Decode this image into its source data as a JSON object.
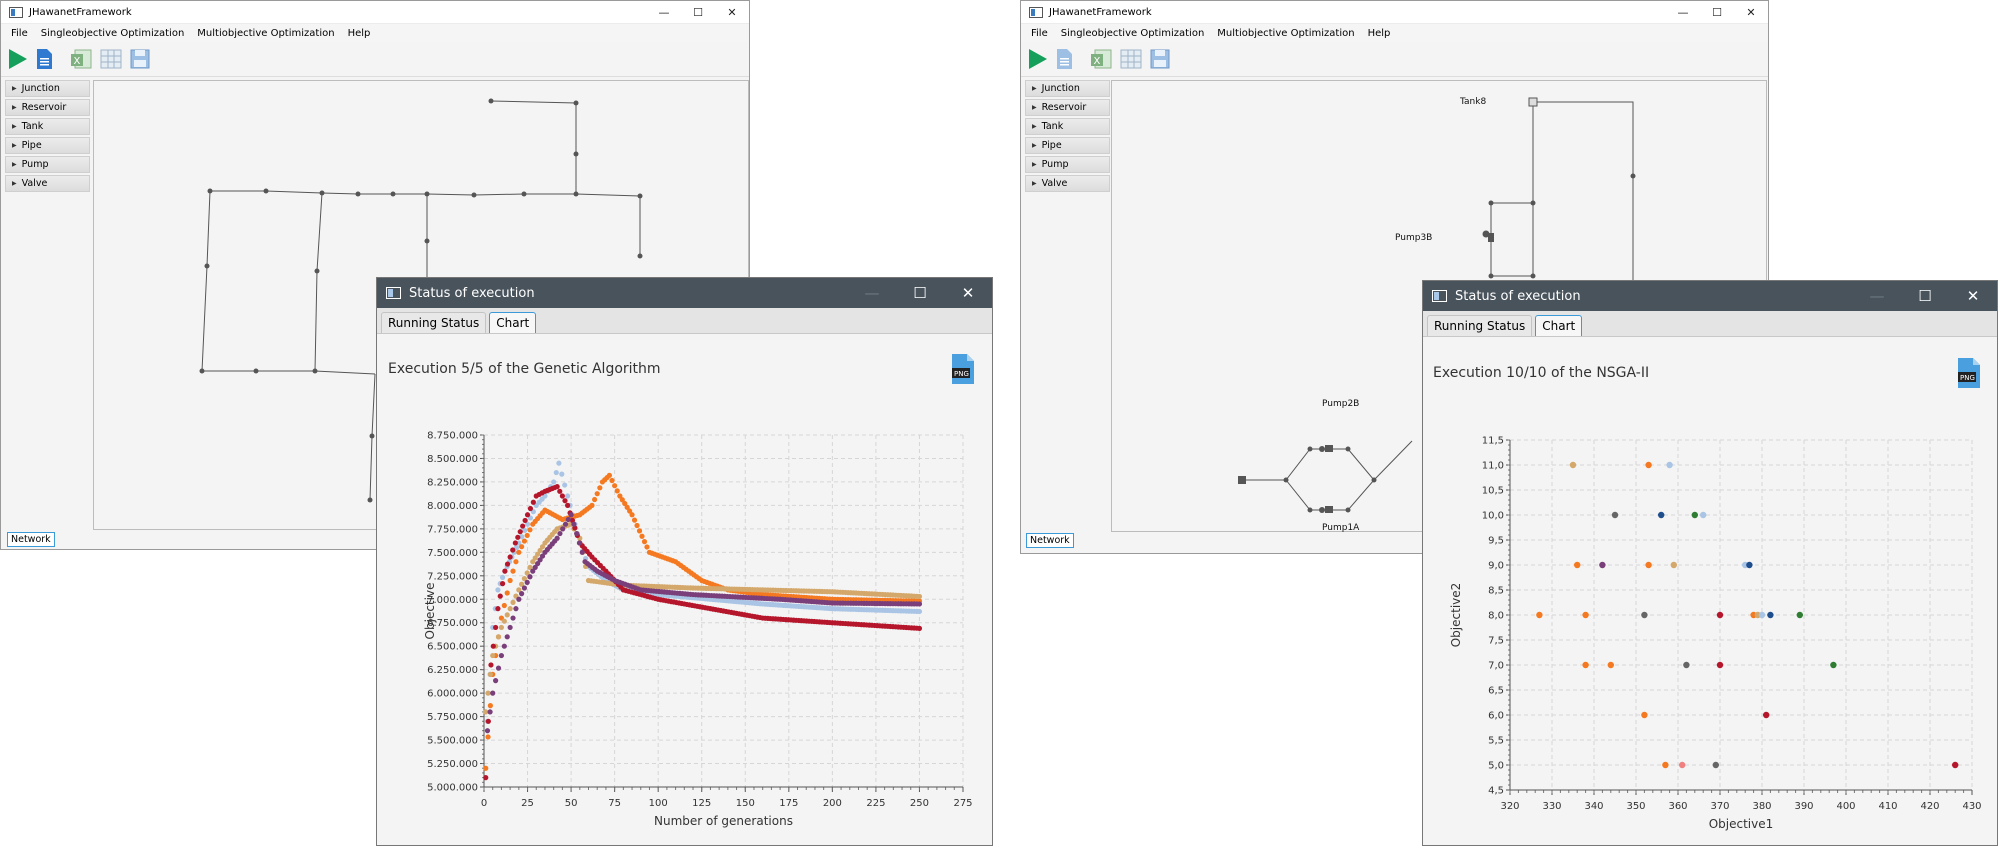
{
  "window_left": {
    "title": "JHawanetFramework",
    "menu": [
      "File",
      "Singleobjective Optimization",
      "Multiobjective Optimization",
      "Help"
    ],
    "sidebar": [
      "Junction",
      "Reservoir",
      "Tank",
      "Pipe",
      "Pump",
      "Valve"
    ],
    "bottom_tab": "Network"
  },
  "window_right": {
    "title": "JHawanetFramework",
    "menu": [
      "File",
      "Singleobjective Optimization",
      "Multiobjective Optimization",
      "Help"
    ],
    "sidebar": [
      "Junction",
      "Reservoir",
      "Tank",
      "Pipe",
      "Pump",
      "Valve"
    ],
    "bottom_tab": "Network",
    "labels": {
      "tank": "Tank8",
      "pump3": "Pump3B",
      "pump2": "Pump2B",
      "pump1": "Pump1A"
    }
  },
  "dialog_left": {
    "title": "Status of execution",
    "tabs": [
      "Running Status",
      "Chart"
    ],
    "active_tab": "Chart",
    "heading": "Execution 5/5 of the Genetic Algorithm",
    "icon": "png-export-icon"
  },
  "dialog_right": {
    "title": "Status of execution",
    "tabs": [
      "Running Status",
      "Chart"
    ],
    "active_tab": "Chart",
    "heading": "Execution 10/10 of the NSGA-II",
    "icon": "png-export-icon"
  },
  "chart_data": [
    {
      "type": "scatter",
      "xlabel": "Number of generations",
      "ylabel": "Objective",
      "xlim": [
        0,
        275
      ],
      "ylim": [
        5000000,
        8750000
      ],
      "x_ticks": [
        "0",
        "25",
        "50",
        "75",
        "100",
        "125",
        "150",
        "175",
        "200",
        "225",
        "250",
        "275"
      ],
      "y_ticks": [
        "5.000.000",
        "5.250.000",
        "5.500.000",
        "5.750.000",
        "6.000.000",
        "6.250.000",
        "6.500.000",
        "6.750.000",
        "7.000.000",
        "7.250.000",
        "7.500.000",
        "7.750.000",
        "8.000.000",
        "8.250.000",
        "8.500.000",
        "8.750.000"
      ],
      "grid": true,
      "series": [
        {
          "color": "#a9c4e4",
          "points": [
            [
              2,
              5700000
            ],
            [
              5,
              6700000
            ],
            [
              8,
              7100000
            ],
            [
              12,
              7300000
            ],
            [
              16,
              7450000
            ],
            [
              20,
              7600000
            ],
            [
              25,
              7800000
            ],
            [
              30,
              8000000
            ],
            [
              35,
              8100000
            ],
            [
              40,
              8250000
            ],
            [
              43,
              8450000
            ],
            [
              48,
              8100000
            ],
            [
              55,
              7600000
            ],
            [
              60,
              7350000
            ],
            [
              70,
              7200000
            ],
            [
              80,
              7100000
            ],
            [
              100,
              7050000
            ],
            [
              130,
              7000000
            ],
            [
              160,
              6950000
            ],
            [
              200,
              6900000
            ],
            [
              250,
              6870000
            ]
          ]
        },
        {
          "color": "#f47920",
          "points": [
            [
              1,
              5200000
            ],
            [
              5,
              6200000
            ],
            [
              10,
              6800000
            ],
            [
              15,
              7200000
            ],
            [
              20,
              7500000
            ],
            [
              28,
              7800000
            ],
            [
              35,
              7950000
            ],
            [
              45,
              7850000
            ],
            [
              55,
              7900000
            ],
            [
              62,
              8000000
            ],
            [
              68,
              8250000
            ],
            [
              72,
              8320000
            ],
            [
              78,
              8100000
            ],
            [
              85,
              7900000
            ],
            [
              95,
              7500000
            ],
            [
              110,
              7400000
            ],
            [
              125,
              7200000
            ],
            [
              140,
              7100000
            ],
            [
              160,
              7050000
            ],
            [
              200,
              7000000
            ],
            [
              250,
              6980000
            ]
          ]
        },
        {
          "color": "#d4a76a",
          "points": [
            [
              1,
              5800000
            ],
            [
              5,
              6400000
            ],
            [
              10,
              6700000
            ],
            [
              15,
              6900000
            ],
            [
              20,
              7100000
            ],
            [
              28,
              7400000
            ],
            [
              35,
              7600000
            ],
            [
              42,
              7750000
            ],
            [
              50,
              7800000
            ],
            [
              55,
              7650000
            ],
            [
              60,
              7200000
            ],
            [
              80,
              7150000
            ],
            [
              120,
              7120000
            ],
            [
              160,
              7100000
            ],
            [
              200,
              7080000
            ],
            [
              250,
              7030000
            ]
          ]
        },
        {
          "color": "#b5162b",
          "points": [
            [
              1,
              5100000
            ],
            [
              4,
              6300000
            ],
            [
              8,
              6900000
            ],
            [
              12,
              7300000
            ],
            [
              18,
              7600000
            ],
            [
              25,
              7900000
            ],
            [
              30,
              8100000
            ],
            [
              35,
              8150000
            ],
            [
              42,
              8200000
            ],
            [
              48,
              8000000
            ],
            [
              55,
              7600000
            ],
            [
              62,
              7450000
            ],
            [
              70,
              7300000
            ],
            [
              80,
              7100000
            ],
            [
              100,
              7000000
            ],
            [
              130,
              6900000
            ],
            [
              160,
              6800000
            ],
            [
              200,
              6750000
            ],
            [
              250,
              6690000
            ]
          ]
        },
        {
          "color": "#7a3f7a",
          "points": [
            [
              2,
              5600000
            ],
            [
              5,
              6000000
            ],
            [
              10,
              6400000
            ],
            [
              15,
              6700000
            ],
            [
              20,
              7000000
            ],
            [
              28,
              7300000
            ],
            [
              35,
              7500000
            ],
            [
              42,
              7650000
            ],
            [
              50,
              7900000
            ],
            [
              58,
              7400000
            ],
            [
              65,
              7300000
            ],
            [
              75,
              7200000
            ],
            [
              90,
              7100000
            ],
            [
              120,
              7050000
            ],
            [
              170,
              7000000
            ],
            [
              200,
              6960000
            ],
            [
              250,
              6950000
            ]
          ]
        }
      ]
    },
    {
      "type": "scatter",
      "xlabel": "Objective1",
      "ylabel": "Objective2",
      "xlim": [
        320,
        430
      ],
      "ylim": [
        4.5,
        11.5
      ],
      "x_ticks": [
        "320",
        "330",
        "340",
        "350",
        "360",
        "370",
        "380",
        "390",
        "400",
        "410",
        "420",
        "430"
      ],
      "y_ticks": [
        "4,5",
        "5,0",
        "5,5",
        "6,0",
        "6,5",
        "7,0",
        "7,5",
        "8,0",
        "8,5",
        "9,0",
        "9,5",
        "10,0",
        "10,5",
        "11,0",
        "11,5"
      ],
      "grid": true,
      "points": [
        {
          "x": 335,
          "y": 11.0,
          "color": "#d4a76a"
        },
        {
          "x": 353,
          "y": 11.0,
          "color": "#f47920"
        },
        {
          "x": 358,
          "y": 11.0,
          "color": "#a9c4e4"
        },
        {
          "x": 345,
          "y": 10.0,
          "color": "#666666"
        },
        {
          "x": 356,
          "y": 10.0,
          "color": "#1f4e8c"
        },
        {
          "x": 364,
          "y": 10.0,
          "color": "#2e7d32"
        },
        {
          "x": 366,
          "y": 10.0,
          "color": "#a9c4e4"
        },
        {
          "x": 336,
          "y": 9.0,
          "color": "#f47920"
        },
        {
          "x": 342,
          "y": 9.0,
          "color": "#7a3f7a"
        },
        {
          "x": 353,
          "y": 9.0,
          "color": "#f47920"
        },
        {
          "x": 359,
          "y": 9.0,
          "color": "#d4a76a"
        },
        {
          "x": 376,
          "y": 9.0,
          "color": "#a9c4e4"
        },
        {
          "x": 377,
          "y": 9.0,
          "color": "#1f4e8c"
        },
        {
          "x": 327,
          "y": 8.0,
          "color": "#f47920"
        },
        {
          "x": 338,
          "y": 8.0,
          "color": "#f47920"
        },
        {
          "x": 352,
          "y": 8.0,
          "color": "#666666"
        },
        {
          "x": 370,
          "y": 8.0,
          "color": "#b5162b"
        },
        {
          "x": 378,
          "y": 8.0,
          "color": "#f47920"
        },
        {
          "x": 379,
          "y": 8.0,
          "color": "#d4a76a"
        },
        {
          "x": 380,
          "y": 8.0,
          "color": "#a9c4e4"
        },
        {
          "x": 382,
          "y": 8.0,
          "color": "#1f4e8c"
        },
        {
          "x": 389,
          "y": 8.0,
          "color": "#2e7d32"
        },
        {
          "x": 338,
          "y": 7.0,
          "color": "#f47920"
        },
        {
          "x": 344,
          "y": 7.0,
          "color": "#f47920"
        },
        {
          "x": 362,
          "y": 7.0,
          "color": "#666666"
        },
        {
          "x": 370,
          "y": 7.0,
          "color": "#b5162b"
        },
        {
          "x": 397,
          "y": 7.0,
          "color": "#2e7d32"
        },
        {
          "x": 352,
          "y": 6.0,
          "color": "#f47920"
        },
        {
          "x": 381,
          "y": 6.0,
          "color": "#b5162b"
        },
        {
          "x": 357,
          "y": 5.0,
          "color": "#f47920"
        },
        {
          "x": 361,
          "y": 5.0,
          "color": "#f08080"
        },
        {
          "x": 369,
          "y": 5.0,
          "color": "#666666"
        },
        {
          "x": 426,
          "y": 5.0,
          "color": "#b5162b"
        }
      ]
    }
  ]
}
